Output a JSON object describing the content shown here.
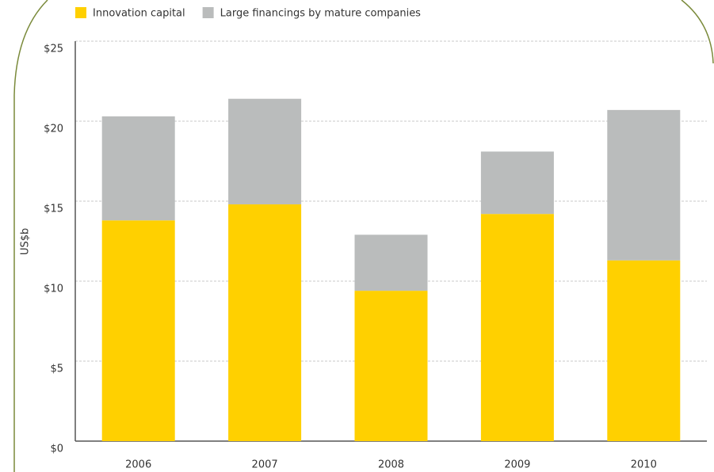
{
  "chart_data": {
    "type": "stacked_bar",
    "y_label": "US$b",
    "categories": [
      "2006",
      "2007",
      "2008",
      "2009",
      "2010"
    ],
    "series": [
      {
        "name": "Innovation capital",
        "color": "#ffd000",
        "values": [
          13.8,
          14.8,
          9.4,
          14.2,
          11.3
        ]
      },
      {
        "name": "Large financings by mature companies",
        "color": "#babcbc",
        "values": [
          6.5,
          6.6,
          3.5,
          3.9,
          9.4
        ]
      }
    ],
    "ylim": [
      0,
      25
    ],
    "yticks": [
      {
        "value": 0,
        "label": "$0"
      },
      {
        "value": 5,
        "label": "$5"
      },
      {
        "value": 10,
        "label": "$10"
      },
      {
        "value": 15,
        "label": "$15"
      },
      {
        "value": 20,
        "label": "$20"
      },
      {
        "value": 25,
        "label": "$25"
      }
    ],
    "grid": true
  }
}
